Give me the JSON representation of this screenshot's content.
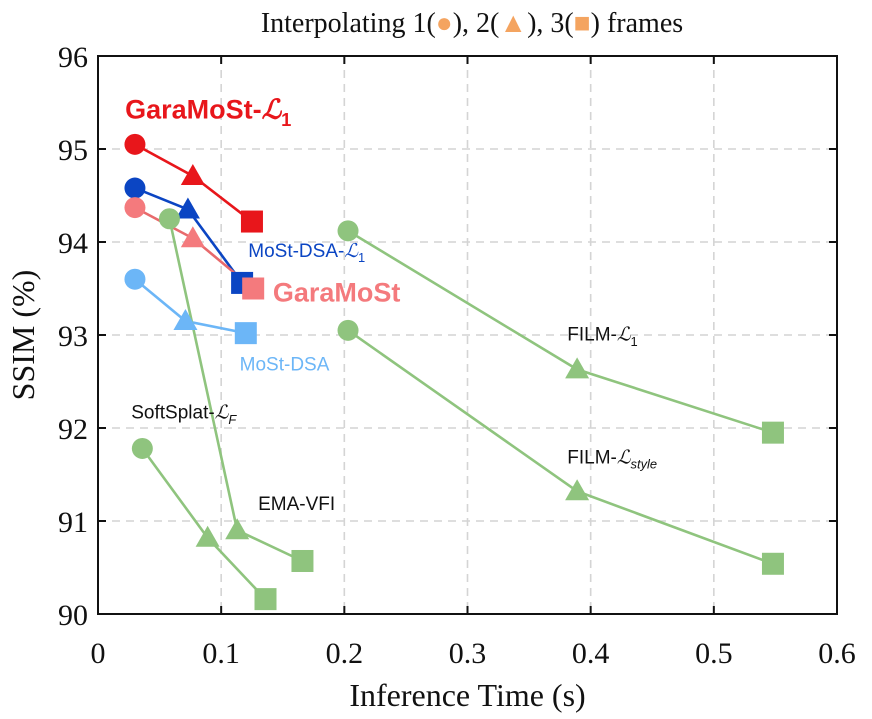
{
  "chart_data": {
    "type": "scatter",
    "title_parts": {
      "prefix": "Interpolating 1(",
      "mid1": "), 2(",
      "mid2": "), 3(",
      "suffix": ") frames"
    },
    "xlabel": "Inference Time (s)",
    "ylabel": "SSIM (%)",
    "xlim": [
      0,
      0.6
    ],
    "ylim": [
      90,
      96
    ],
    "xticks": [
      0,
      0.1,
      0.2,
      0.3,
      0.4,
      0.5,
      0.6
    ],
    "xtick_labels": [
      "0",
      "0.1",
      "0.2",
      "0.3",
      "0.4",
      "0.5",
      "0.6"
    ],
    "yticks": [
      90,
      91,
      92,
      93,
      94,
      95,
      96
    ],
    "ytick_labels": [
      "90",
      "91",
      "92",
      "93",
      "94",
      "95",
      "96"
    ],
    "grid": true,
    "legend_marker_color": "#f4a460",
    "marker_order": [
      "circle",
      "triangle",
      "square"
    ],
    "series": [
      {
        "name": "GaraMoSt-L1",
        "label_main": "GaraMoSt-",
        "label_math": "ℒ",
        "label_sub": "1",
        "color": "#e8161b",
        "line_color": "#e8161b",
        "points": [
          [
            0.03,
            95.05
          ],
          [
            0.077,
            94.71
          ],
          [
            0.125,
            94.22
          ]
        ]
      },
      {
        "name": "MoSt-DSA-L1",
        "label_main": "MoSt-DSA-",
        "label_math": "ℒ",
        "label_sub": "1",
        "color": "#0b45c3",
        "line_color": "#0b45c3",
        "points": [
          [
            0.03,
            94.58
          ],
          [
            0.073,
            94.35
          ],
          [
            0.117,
            93.56
          ]
        ]
      },
      {
        "name": "GaraMoSt",
        "label_main": "GaraMoSt",
        "color": "#f47a7d",
        "line_color": "#e86a6c",
        "points": [
          [
            0.03,
            94.37
          ],
          [
            0.077,
            94.04
          ],
          [
            0.126,
            93.5
          ]
        ]
      },
      {
        "name": "MoSt-DSA",
        "label_main": "MoSt-DSA",
        "color": "#6cb6f7",
        "line_color": "#6cb6f7",
        "points": [
          [
            0.03,
            93.6
          ],
          [
            0.071,
            93.15
          ],
          [
            0.12,
            93.02
          ]
        ]
      },
      {
        "name": "SoftSplat-LF",
        "label_main": "SoftSplat-",
        "label_math": "ℒ",
        "label_sub": "F",
        "color": "#8fc47e",
        "line_color": "#8fc47e",
        "points": [
          [
            0.036,
            91.78
          ],
          [
            0.089,
            90.82
          ],
          [
            0.136,
            90.16
          ]
        ]
      },
      {
        "name": "EMA-VFI",
        "label_main": "EMA-VFI",
        "color": "#8fc47e",
        "line_color": "#8fc47e",
        "points": [
          [
            0.058,
            94.25
          ],
          [
            0.113,
            90.9
          ],
          [
            0.166,
            90.57
          ]
        ]
      },
      {
        "name": "FILM-L1",
        "label_main": "FILM-",
        "label_math": "ℒ",
        "label_sub": "1",
        "color": "#8fc47e",
        "line_color": "#8fc47e",
        "points": [
          [
            0.203,
            94.12
          ],
          [
            0.389,
            92.63
          ],
          [
            0.548,
            91.95
          ]
        ]
      },
      {
        "name": "FILM-Lstyle",
        "label_main": "FILM-",
        "label_math": "ℒ",
        "label_sub": "style",
        "color": "#8fc47e",
        "line_color": "#8fc47e",
        "points": [
          [
            0.203,
            93.05
          ],
          [
            0.389,
            91.32
          ],
          [
            0.548,
            90.54
          ]
        ]
      }
    ],
    "annotations": [
      {
        "series": "GaraMoSt-L1",
        "x": 0.022,
        "y": 95.33,
        "style": "bold-large"
      },
      {
        "series": "MoSt-DSA-L1",
        "x": 0.122,
        "y": 93.84,
        "style": "normal"
      },
      {
        "series": "GaraMoSt",
        "x": 0.142,
        "y": 93.36,
        "style": "bold-large"
      },
      {
        "series": "MoSt-DSA",
        "x": 0.115,
        "y": 92.62,
        "style": "normal"
      },
      {
        "series": "SoftSplat-LF",
        "x": 0.027,
        "y": 92.1,
        "style": "normal"
      },
      {
        "series": "EMA-VFI",
        "x": 0.13,
        "y": 91.12,
        "style": "normal"
      },
      {
        "series": "FILM-L1",
        "x": 0.381,
        "y": 92.94,
        "style": "normal"
      },
      {
        "series": "FILM-Lstyle",
        "x": 0.381,
        "y": 91.62,
        "style": "normal"
      }
    ]
  }
}
